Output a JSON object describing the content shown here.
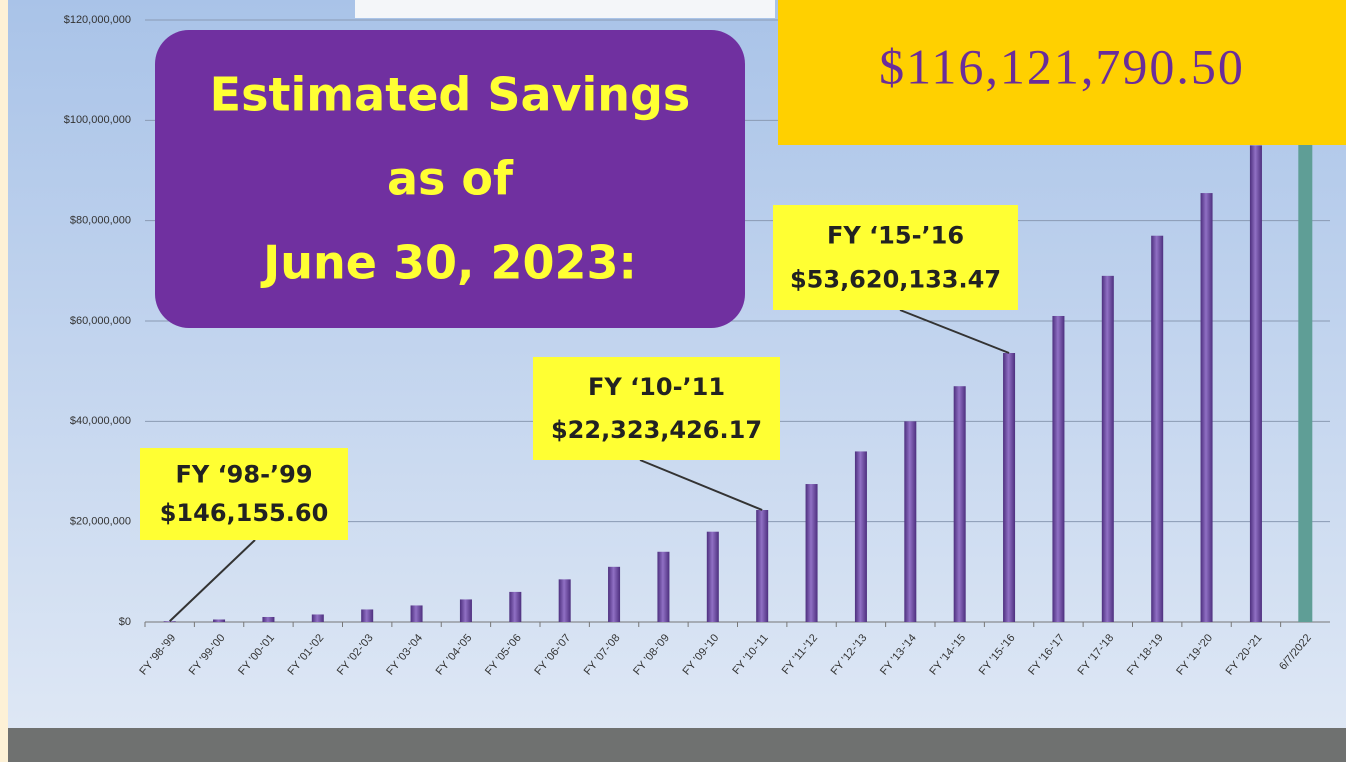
{
  "chart_data": {
    "type": "bar",
    "title": [
      "Estimated Savings",
      "as of",
      "June 30, 2023:"
    ],
    "headline": "$116,121,790.50",
    "categories": [
      "FY '98-'99",
      "FY '99-'00",
      "FY '00-'01",
      "FY '01-'02",
      "FY '02-'03",
      "FY '03-'04",
      "FY '04-'05",
      "FY '05-'06",
      "FY '06-'07",
      "FY '07-'08",
      "FY '08-'09",
      "FY '09-'10",
      "FY '10-'11",
      "FY '11-'12",
      "FY '12-'13",
      "FY '13-'14",
      "FY '14-'15",
      "FY '15-'16",
      "FY '16-'17",
      "FY '17-'18",
      "FY '18-'19",
      "FY '19-'20",
      "FY '20-'21",
      "6/7/2022"
    ],
    "values": [
      146155.6,
      500000,
      1000000,
      1500000,
      2500000,
      3300000,
      4500000,
      6000000,
      8500000,
      11000000,
      14000000,
      18000000,
      22323426.17,
      27500000,
      34000000,
      40000000,
      47000000,
      53620133.47,
      61000000,
      69000000,
      77000000,
      85500000,
      95000000,
      116000000
    ],
    "colors": [
      "#6a4a9c",
      "#6a4a9c",
      "#6a4a9c",
      "#6a4a9c",
      "#6a4a9c",
      "#6a4a9c",
      "#6a4a9c",
      "#6a4a9c",
      "#6a4a9c",
      "#6a4a9c",
      "#6a4a9c",
      "#6a4a9c",
      "#6a4a9c",
      "#6a4a9c",
      "#6a4a9c",
      "#6a4a9c",
      "#6a4a9c",
      "#6a4a9c",
      "#6a4a9c",
      "#6a4a9c",
      "#6a4a9c",
      "#6a4a9c",
      "#6a4a9c",
      "#5f9e96"
    ],
    "ylim": [
      0,
      120000000
    ],
    "yticks": [
      {
        "value": 0,
        "label": "$0"
      },
      {
        "value": 20000000,
        "label": "$20,000,000"
      },
      {
        "value": 40000000,
        "label": "$40,000,000"
      },
      {
        "value": 60000000,
        "label": "$60,000,000"
      },
      {
        "value": 80000000,
        "label": "$80,000,000"
      },
      {
        "value": 100000000,
        "label": "$100,000,000"
      },
      {
        "value": 120000000,
        "label": "$120,000,000"
      }
    ],
    "grid": true,
    "annotations": [
      [
        "FY ‘98-’99",
        "$146,155.60"
      ],
      [
        "FY ‘10-’11",
        "$22,323,426.17"
      ],
      [
        "FY ‘15-’16",
        "$53,620,133.47"
      ]
    ]
  }
}
